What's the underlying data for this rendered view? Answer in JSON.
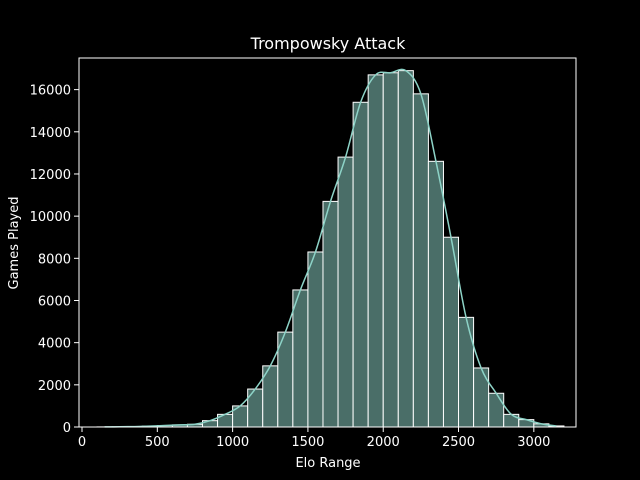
{
  "chart_data": {
    "type": "bar",
    "title": "Trompowsky Attack",
    "xlabel": "Elo Range",
    "ylabel": "Games Played",
    "xlim": [
      -20,
      3280
    ],
    "ylim": [
      0,
      17500
    ],
    "xticks": [
      0,
      500,
      1000,
      1500,
      2000,
      2500,
      3000
    ],
    "yticks": [
      0,
      2000,
      4000,
      6000,
      8000,
      10000,
      12000,
      14000,
      16000
    ],
    "grid": false,
    "bin_width": 100,
    "bin_edges": [
      100,
      200,
      300,
      400,
      500,
      600,
      700,
      800,
      900,
      1000,
      1100,
      1200,
      1300,
      1400,
      1500,
      1600,
      1700,
      1800,
      1900,
      2000,
      2100,
      2200,
      2300,
      2400,
      2500,
      2600,
      2700,
      2800,
      2900,
      3000,
      3100,
      3200
    ],
    "values": [
      5,
      10,
      20,
      40,
      70,
      100,
      130,
      300,
      600,
      1000,
      1800,
      2900,
      4500,
      6500,
      8300,
      10700,
      12800,
      15400,
      16700,
      16800,
      16900,
      15800,
      12600,
      9000,
      5200,
      2800,
      1600,
      600,
      350,
      150,
      50
    ],
    "kde": true,
    "colors": {
      "bar_fill": "#4a6e68",
      "bar_edge": "#ffffff",
      "kde_line": "#8dd3c7",
      "background": "#000000",
      "axes": "#ffffff"
    }
  }
}
